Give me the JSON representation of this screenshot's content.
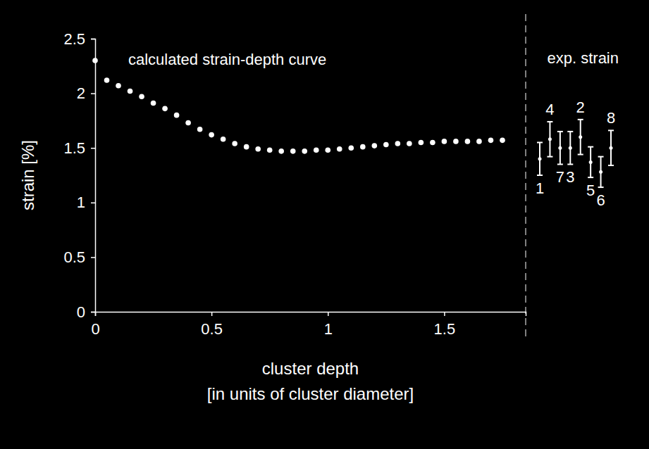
{
  "chart_data": {
    "type": "scatter",
    "ylabel": "strain [%]",
    "xlabel": [
      "cluster depth",
      "[in units of cluster diameter]"
    ],
    "xlim": [
      0,
      1.85
    ],
    "xticks": [
      0,
      0.5,
      1,
      1.5
    ],
    "ylim": [
      0,
      2.5
    ],
    "yticks": [
      0,
      0.5,
      1,
      1.5,
      2,
      2.5
    ],
    "x": [
      0,
      0.05,
      0.1,
      0.15,
      0.2,
      0.25,
      0.3,
      0.35,
      0.4,
      0.45,
      0.5,
      0.55,
      0.6,
      0.65,
      0.7,
      0.75,
      0.8,
      0.85,
      0.9,
      0.95,
      1,
      1.05,
      1.1,
      1.15,
      1.2,
      1.25,
      1.3,
      1.35,
      1.4,
      1.45,
      1.5,
      1.55,
      1.6,
      1.65,
      1.7,
      1.75
    ],
    "series": [
      {
        "name": "calculated strain-depth curve",
        "color": "#ffffff",
        "marker": "circle",
        "values": [
          2.3,
          2.12,
          2.07,
          2.02,
          1.97,
          1.91,
          1.86,
          1.8,
          1.73,
          1.67,
          1.62,
          1.58,
          1.54,
          1.51,
          1.49,
          1.48,
          1.47,
          1.47,
          1.47,
          1.48,
          1.48,
          1.49,
          1.5,
          1.51,
          1.52,
          1.53,
          1.54,
          1.54,
          1.55,
          1.55,
          1.56,
          1.56,
          1.56,
          1.56,
          1.57,
          1.57
        ]
      }
    ],
    "experiment": {
      "title": "exp. strain",
      "color": "#ffffff",
      "categories": [
        "1",
        "4",
        "7",
        "3",
        "2",
        "5",
        "6",
        "8"
      ],
      "values": [
        1.4,
        1.58,
        1.5,
        1.5,
        1.6,
        1.37,
        1.28,
        1.5
      ],
      "errors": [
        0.15,
        0.16,
        0.15,
        0.15,
        0.16,
        0.14,
        0.14,
        0.16
      ]
    }
  }
}
